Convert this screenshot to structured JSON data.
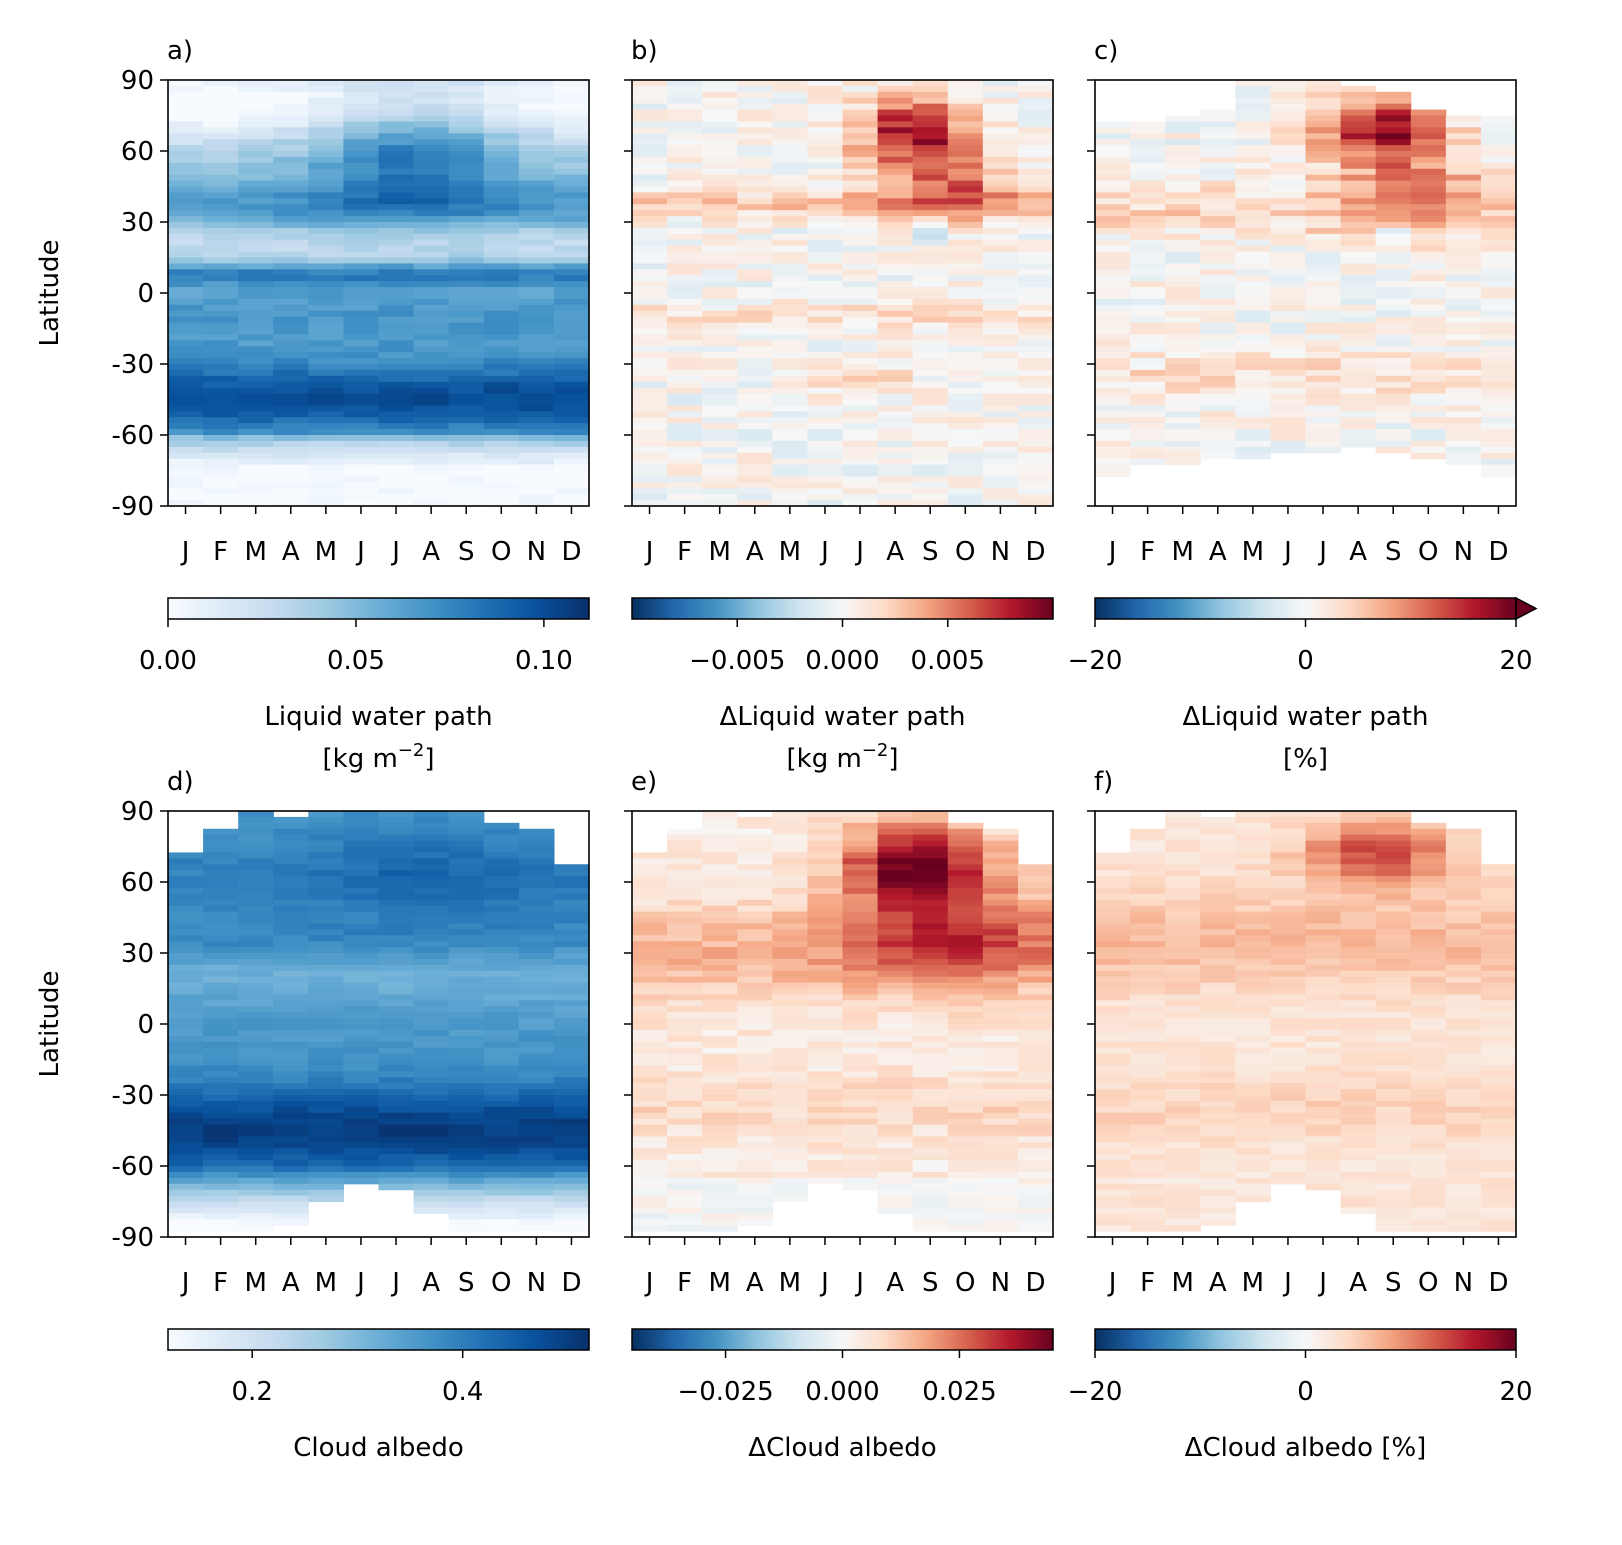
{
  "figure": {
    "y_axis_label": "Latitude",
    "month_labels": [
      "J",
      "F",
      "M",
      "A",
      "M",
      "J",
      "J",
      "A",
      "S",
      "O",
      "N",
      "D"
    ],
    "lat_ticks": [
      "90",
      "60",
      "30",
      "0",
      "-30",
      "-60",
      "-90"
    ]
  },
  "chart_data": [
    {
      "panel": "a)",
      "type": "heatmap",
      "colormap": "Blues",
      "x": [
        "J",
        "F",
        "M",
        "A",
        "M",
        "J",
        "J",
        "A",
        "S",
        "O",
        "N",
        "D"
      ],
      "ylim": [
        -90,
        90
      ],
      "colorbar": {
        "min": 0.0,
        "max": 0.112,
        "ticks": [
          0.0,
          0.05,
          0.1
        ],
        "tick_labels": [
          "0.00",
          "0.05",
          "0.10"
        ],
        "extend": "neither",
        "label_line1": "Liquid water path",
        "label_line2_base": "[kg m",
        "label_line2_sup": "−2",
        "label_line2_end": "]"
      }
    },
    {
      "panel": "b)",
      "type": "heatmap",
      "colormap": "RdBu_r",
      "x": [
        "J",
        "F",
        "M",
        "A",
        "M",
        "J",
        "J",
        "A",
        "S",
        "O",
        "N",
        "D"
      ],
      "ylim": [
        -90,
        90
      ],
      "colorbar": {
        "min": -0.01,
        "max": 0.01,
        "ticks": [
          -0.005,
          0.0,
          0.005
        ],
        "tick_labels": [
          "−0.005",
          "0.000",
          "0.005"
        ],
        "extend": "neither",
        "label_line1": "ΔLiquid water path",
        "label_line2_base": "[kg m",
        "label_line2_sup": "−2",
        "label_line2_end": "]"
      }
    },
    {
      "panel": "c)",
      "type": "heatmap",
      "colormap": "RdBu_r",
      "x": [
        "J",
        "F",
        "M",
        "A",
        "M",
        "J",
        "J",
        "A",
        "S",
        "O",
        "N",
        "D"
      ],
      "ylim": [
        -90,
        90
      ],
      "colorbar": {
        "min": -20,
        "max": 20,
        "ticks": [
          -20,
          0,
          20
        ],
        "tick_labels": [
          "−20",
          "0",
          "20"
        ],
        "extend": "max",
        "label_line1": "ΔLiquid water path",
        "label_line2_base": "[%]"
      }
    },
    {
      "panel": "d)",
      "type": "heatmap",
      "colormap": "Blues",
      "x": [
        "J",
        "F",
        "M",
        "A",
        "M",
        "J",
        "J",
        "A",
        "S",
        "O",
        "N",
        "D"
      ],
      "ylim": [
        -90,
        90
      ],
      "colorbar": {
        "min": 0.12,
        "max": 0.52,
        "ticks": [
          0.2,
          0.4
        ],
        "tick_labels": [
          "0.2",
          "0.4"
        ],
        "extend": "neither",
        "label_line1": "Cloud albedo"
      }
    },
    {
      "panel": "e)",
      "type": "heatmap",
      "colormap": "RdBu_r",
      "x": [
        "J",
        "F",
        "M",
        "A",
        "M",
        "J",
        "J",
        "A",
        "S",
        "O",
        "N",
        "D"
      ],
      "ylim": [
        -90,
        90
      ],
      "colorbar": {
        "min": -0.045,
        "max": 0.045,
        "ticks": [
          -0.025,
          0.0,
          0.025
        ],
        "tick_labels": [
          "−0.025",
          "0.000",
          "0.025"
        ],
        "extend": "neither",
        "label_line1": "ΔCloud albedo"
      }
    },
    {
      "panel": "f)",
      "type": "heatmap",
      "colormap": "RdBu_r",
      "x": [
        "J",
        "F",
        "M",
        "A",
        "M",
        "J",
        "J",
        "A",
        "S",
        "O",
        "N",
        "D"
      ],
      "ylim": [
        -90,
        90
      ],
      "colorbar": {
        "min": -20,
        "max": 20,
        "ticks": [
          -20,
          0,
          20
        ],
        "tick_labels": [
          "−20",
          "0",
          "20"
        ],
        "extend": "neither",
        "label_line1": "ΔCloud albedo [%]"
      }
    }
  ]
}
